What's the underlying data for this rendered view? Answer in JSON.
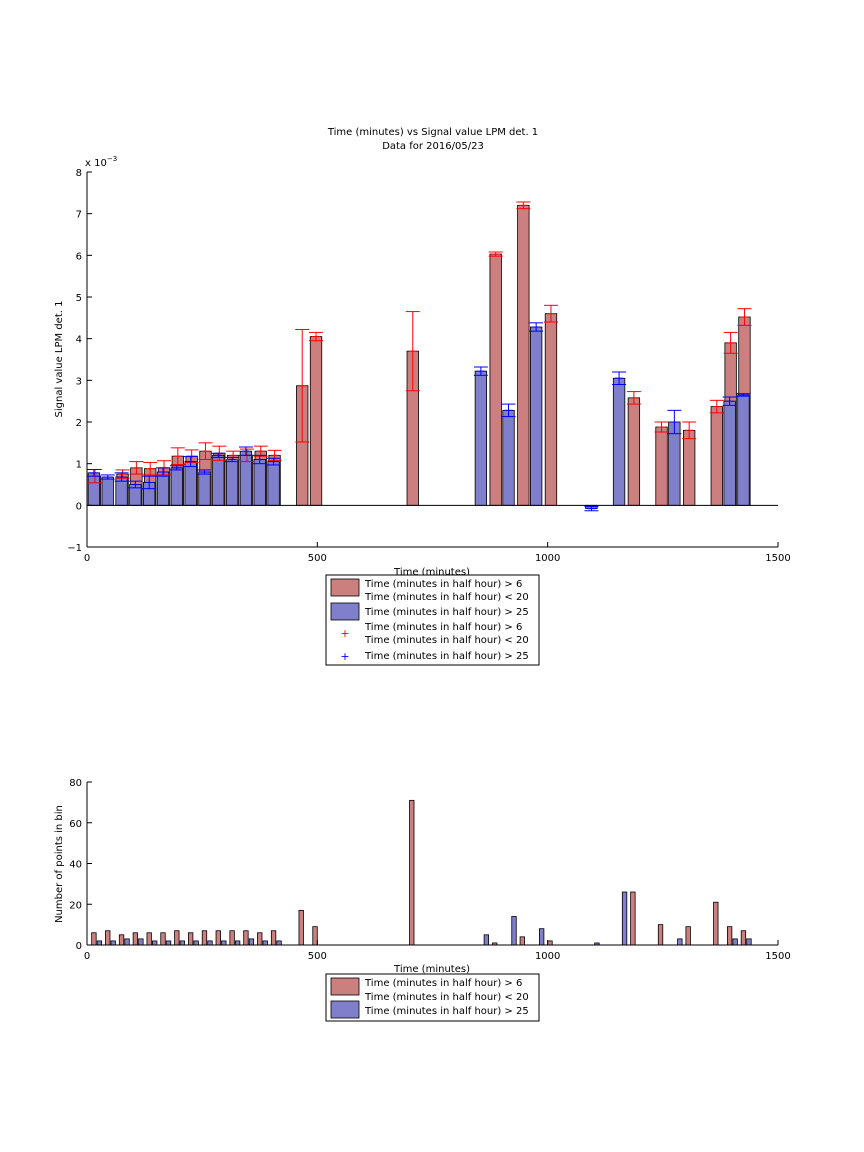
{
  "colors": {
    "red_bar": "#CC7F7F",
    "blue_bar": "#7F7FCC",
    "red_err": "#FF0000",
    "blue_err": "#0000FF"
  },
  "chart_data": [
    {
      "type": "bar",
      "title": "Time (minutes) vs Signal value LPM det. 1",
      "subtitle": "Data for 2016/05/23",
      "xlabel": "Time (minutes)",
      "ylabel": "Signal value LPM det. 1",
      "y_exponent_label": "x 10",
      "y_exponent_power": "−3",
      "xlim": [
        0,
        1500
      ],
      "ylim": [
        -1,
        8
      ],
      "xticks": [
        "0",
        "500",
        "1000",
        "1500"
      ],
      "yticks": [
        "−1",
        "0",
        "1",
        "2",
        "3",
        "4",
        "5",
        "6",
        "7",
        "8"
      ],
      "xtick_values": [
        0,
        500,
        1000,
        1500
      ],
      "ytick_values": [
        -1,
        0,
        1,
        2,
        3,
        4,
        5,
        6,
        7,
        8
      ],
      "grid": false,
      "legend_position": "bottom",
      "legend": [
        {
          "kind": "bar",
          "color": "red",
          "lines": [
            "Time (minutes in half hour) > 6",
            "Time (minutes in half hour) < 20"
          ]
        },
        {
          "kind": "bar",
          "color": "blue",
          "lines": [
            "Time (minutes in half hour) > 25"
          ]
        },
        {
          "kind": "marker",
          "color": "red",
          "lines": [
            "Time (minutes in half hour) > 6",
            "Time (minutes in half hour) < 20"
          ]
        },
        {
          "kind": "marker",
          "color": "blue",
          "lines": [
            "Time (minutes in half hour) > 25"
          ]
        }
      ],
      "series": [
        {
          "color": "red",
          "x": [
            15,
            75,
            105,
            135,
            165,
            195,
            225,
            255,
            285,
            315,
            345,
            375,
            405,
            465,
            495,
            705,
            885,
            945,
            1005,
            1185,
            1245,
            1305,
            1365,
            1395,
            1425
          ],
          "values": [
            0.7,
            0.75,
            0.9,
            0.88,
            0.9,
            1.18,
            1.18,
            1.3,
            1.25,
            1.2,
            1.2,
            1.3,
            1.2,
            2.87,
            4.05,
            3.7,
            6.03,
            7.2,
            4.6,
            2.58,
            1.88,
            1.8,
            2.37,
            3.9,
            4.52
          ],
          "err": [
            0.16,
            0.1,
            0.15,
            0.15,
            0.17,
            0.2,
            0.15,
            0.2,
            0.17,
            0.1,
            0.15,
            0.12,
            0.12,
            1.35,
            0.1,
            0.95,
            0.05,
            0.08,
            0.2,
            0.15,
            0.12,
            0.2,
            0.15,
            0.25,
            0.2
          ]
        },
        {
          "color": "blue",
          "x": [
            15,
            45,
            75,
            105,
            135,
            165,
            195,
            225,
            255,
            285,
            315,
            345,
            375,
            405,
            855,
            915,
            975,
            1095,
            1155,
            1275,
            1395,
            1425
          ],
          "values": [
            0.78,
            0.68,
            0.68,
            0.5,
            0.55,
            0.8,
            0.9,
            1.05,
            0.8,
            1.2,
            1.1,
            1.3,
            1.1,
            1.05,
            3.22,
            2.28,
            4.28,
            -0.08,
            3.05,
            2.0,
            2.5,
            2.65
          ],
          "err": [
            0.08,
            0.05,
            0.1,
            0.08,
            0.15,
            0.1,
            0.05,
            0.12,
            0.05,
            0.05,
            0.05,
            0.1,
            0.1,
            0.08,
            0.1,
            0.15,
            0.1,
            0.05,
            0.15,
            0.28,
            0.1,
            0.03
          ]
        }
      ]
    },
    {
      "type": "bar",
      "xlabel": "Time (minutes)",
      "ylabel": "Number of points in bin",
      "xlim": [
        0,
        1500
      ],
      "ylim": [
        0,
        80
      ],
      "xticks": [
        "0",
        "500",
        "1000",
        "1500"
      ],
      "yticks": [
        "0",
        "20",
        "40",
        "60",
        "80"
      ],
      "xtick_values": [
        0,
        500,
        1000,
        1500
      ],
      "ytick_values": [
        0,
        20,
        40,
        60,
        80
      ],
      "grid": false,
      "legend_position": "bottom",
      "legend": [
        {
          "kind": "bar",
          "color": "red",
          "lines": [
            "Time (minutes in half hour) > 6",
            "Time (minutes in half hour) < 20"
          ]
        },
        {
          "kind": "bar",
          "color": "blue",
          "lines": [
            "Time (minutes in half hour) > 25"
          ]
        }
      ],
      "series": [
        {
          "color": "red",
          "x": [
            15,
            45,
            75,
            105,
            135,
            165,
            195,
            225,
            255,
            285,
            315,
            345,
            375,
            405,
            465,
            495,
            705,
            885,
            945,
            1005,
            1185,
            1245,
            1305,
            1365,
            1395,
            1425
          ],
          "values": [
            6,
            7,
            5,
            6,
            6,
            6,
            7,
            6,
            7,
            7,
            7,
            7,
            6,
            7,
            17,
            9,
            71,
            1,
            4,
            2,
            26,
            10,
            9,
            21,
            9,
            7
          ]
        },
        {
          "color": "blue",
          "x": [
            15,
            45,
            75,
            105,
            135,
            165,
            195,
            225,
            255,
            285,
            315,
            345,
            375,
            405,
            855,
            915,
            975,
            1095,
            1155,
            1275,
            1395,
            1425
          ],
          "values": [
            2,
            2,
            3,
            3,
            2,
            2,
            2,
            2,
            2,
            2,
            2,
            3,
            2,
            2,
            5,
            14,
            8,
            1,
            26,
            3,
            3,
            3
          ]
        }
      ]
    }
  ]
}
